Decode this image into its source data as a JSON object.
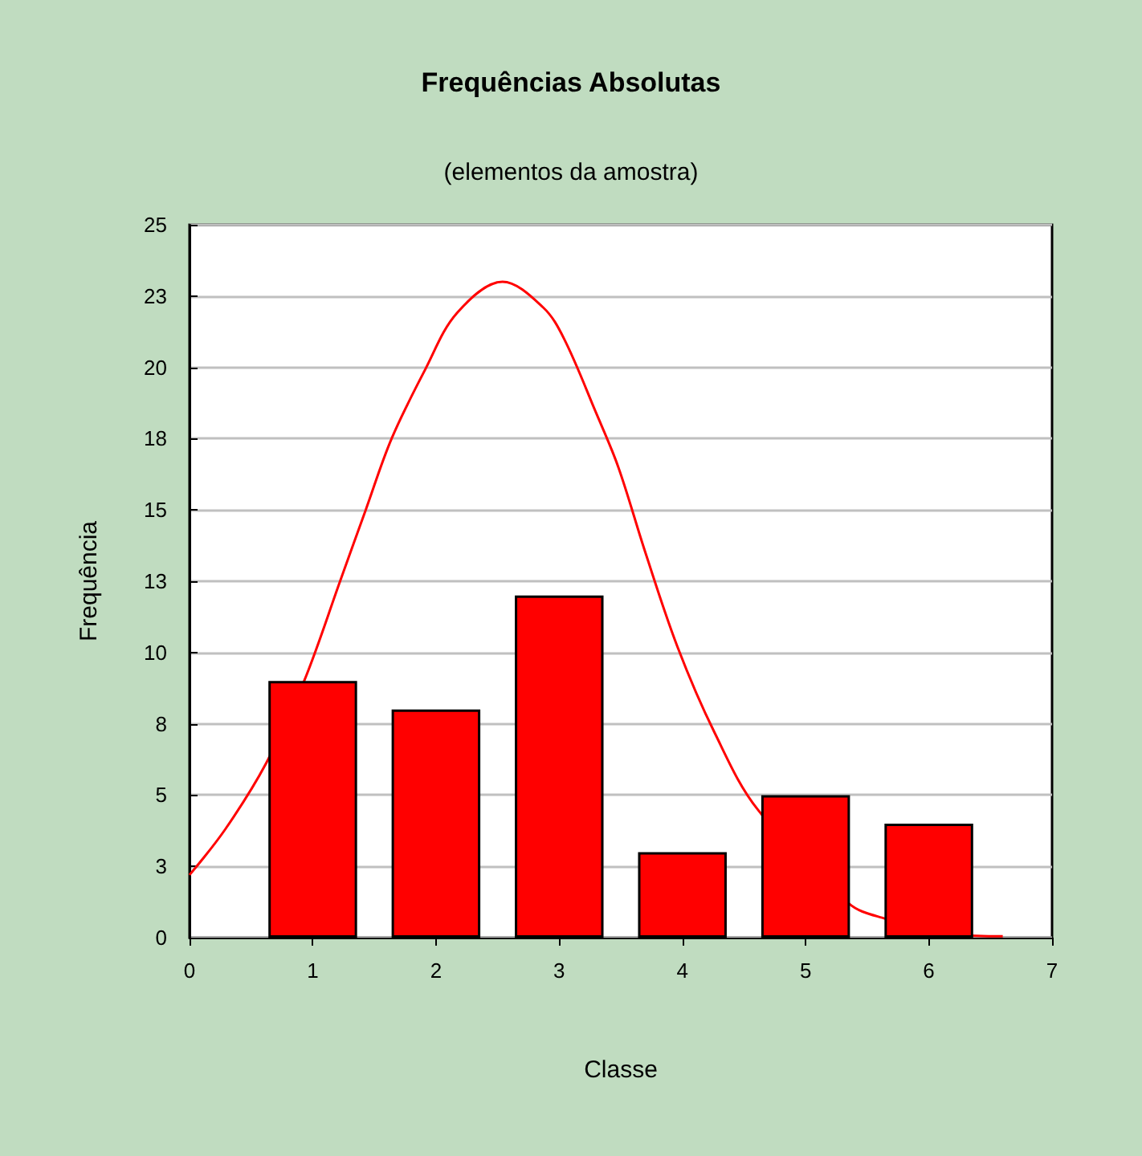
{
  "chart_data": {
    "type": "bar",
    "title": "Frequências Absolutas",
    "subtitle": "(elementos da amostra)",
    "xlabel": "Classe",
    "ylabel": "Frequência",
    "series": [
      {
        "color": "#ff0000",
        "x": [
          1,
          2,
          3,
          4,
          5,
          6
        ],
        "values": [
          9,
          8,
          12,
          3,
          5,
          4
        ]
      },
      {
        "type": "line",
        "color": "#ff0000",
        "marker": "none",
        "line_style": "solid",
        "x": [
          0,
          0.29,
          0.62,
          0.93,
          1.23,
          1.43,
          1.64,
          1.91,
          2.17,
          2.54,
          2.87,
          3.04,
          3.3,
          3.48,
          3.7,
          3.96,
          4.26,
          4.61,
          5.35,
          5.62,
          6.23,
          6.6
        ],
        "values": [
          2.2,
          3.8,
          6.1,
          9.0,
          12.6,
          15.0,
          17.5,
          19.9,
          21.9,
          23.0,
          22.1,
          21.0,
          18.4,
          16.5,
          13.5,
          10.2,
          7.2,
          4.5,
          1.2,
          0.7,
          0.1,
          0.05
        ]
      }
    ],
    "xlim": [
      0,
      7
    ],
    "xticks": [
      0,
      1,
      2,
      3,
      4,
      5,
      6,
      7
    ],
    "ylim": [
      0,
      25
    ],
    "yticks": [
      0,
      {
        "value": 2.5,
        "label": "3"
      },
      5,
      {
        "value": 7.5,
        "label": "8"
      },
      10,
      {
        "value": 12.5,
        "label": "13"
      },
      15,
      {
        "value": 17.5,
        "label": "18"
      },
      20,
      {
        "value": 22.5,
        "label": "23"
      },
      25
    ],
    "grid": "y"
  }
}
